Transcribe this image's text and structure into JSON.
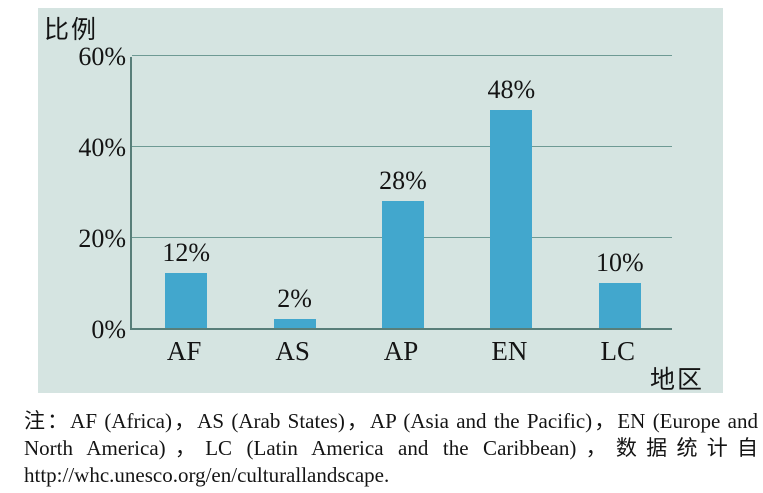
{
  "chart_data": {
    "type": "bar",
    "title": "",
    "ylabel": "比例",
    "xlabel": "地区",
    "categories": [
      "AF",
      "AS",
      "AP",
      "EN",
      "LC"
    ],
    "values": [
      12,
      2,
      28,
      48,
      10
    ],
    "value_labels": [
      "12%",
      "2%",
      "28%",
      "48%",
      "10%"
    ],
    "yticks": [
      0,
      20,
      40,
      60
    ],
    "ytick_labels": [
      "0%",
      "20%",
      "40%",
      "60%"
    ],
    "ylim": [
      0,
      60
    ],
    "grid": true,
    "legend": "none",
    "bar_color": "#42a7cd",
    "panel_background": "#d5e4e1",
    "gridline_color": "#6e9a94",
    "axis_color": "#587e79",
    "text_color": "#141414"
  },
  "note": {
    "lines": [
      "注：AF (Africa)，AS (Arab States)，AP (Asia and the Pacific)，EN (Europe and",
      "North America)，LC (Latin America and the Caribbean)，数据统计自",
      "http://whc.unesco.org/en/culturallandscape."
    ]
  }
}
